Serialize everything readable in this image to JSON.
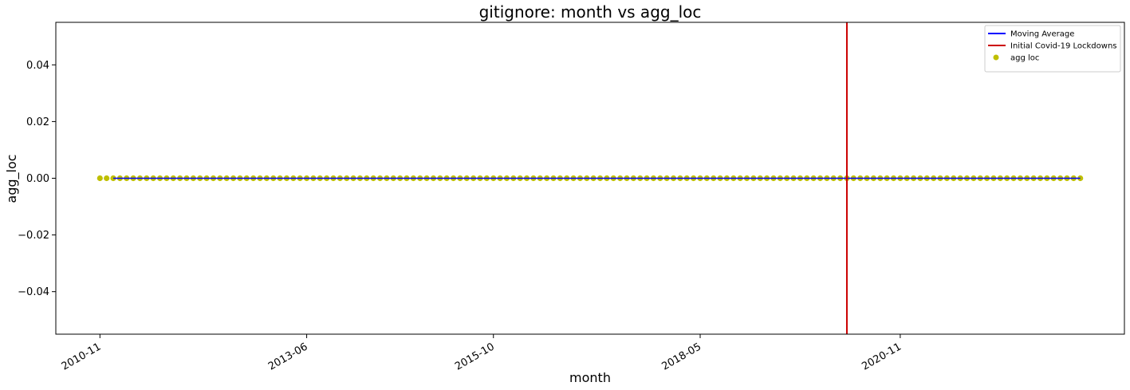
{
  "chart_data": {
    "type": "scatter",
    "title": "gitignore: month vs agg_loc",
    "xlabel": "month",
    "ylabel": "agg_loc",
    "x_start": "2010-11",
    "x_end": "2023-02",
    "x_ticks": [
      "2010-11",
      "2013-06",
      "2015-10",
      "2018-05",
      "2020-11"
    ],
    "ylim": [
      -0.055,
      0.055
    ],
    "y_ticks": [
      0.04,
      0.02,
      0.0,
      -0.02,
      -0.04
    ],
    "y_tick_labels": [
      "0.04",
      "0.02",
      "0.00",
      "−0.02",
      "−0.04"
    ],
    "series": [
      {
        "name": "agg loc",
        "kind": "scatter",
        "color": "#bfbf00",
        "constant_value": 0.0
      },
      {
        "name": "Moving Average",
        "kind": "line",
        "color": "#0000ff",
        "start": "2011-01",
        "end": "2023-02",
        "constant_value": 0.0
      }
    ],
    "vertical_lines": [
      {
        "name": "Initial Covid-19 Lockdowns",
        "x": "2020-03",
        "color": "#cc0000"
      }
    ],
    "legend": {
      "position": "top-right",
      "entries": [
        "Moving Average",
        "Initial Covid-19 Lockdowns",
        "agg loc"
      ]
    },
    "grid": false
  }
}
